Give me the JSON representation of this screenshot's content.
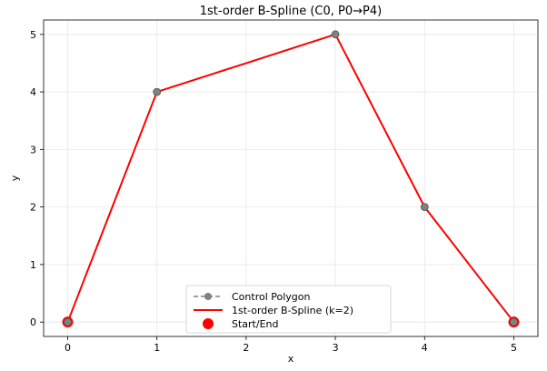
{
  "chart_data": {
    "type": "line",
    "title": "1st-order B-Spline (C0, P0→P4)",
    "xlabel": "x",
    "ylabel": "y",
    "xlim": [
      -0.27,
      5.27
    ],
    "ylim": [
      -0.25,
      5.25
    ],
    "xticks": [
      0,
      1,
      2,
      3,
      4,
      5
    ],
    "yticks": [
      0,
      1,
      2,
      3,
      4,
      5
    ],
    "grid": true,
    "legend_position": "bottom-center",
    "series": [
      {
        "name": "Control Polygon",
        "style": "dashed-with-circle-markers",
        "color": "#808080",
        "x": [
          0,
          1,
          3,
          4,
          5
        ],
        "y": [
          0,
          4,
          5,
          2,
          0
        ]
      },
      {
        "name": "1st-order B-Spline (k=2)",
        "style": "solid",
        "color": "#ff0000",
        "x": [
          0,
          1,
          3,
          4,
          5
        ],
        "y": [
          0,
          4,
          5,
          2,
          0
        ]
      },
      {
        "name": "Start/End",
        "style": "scatter",
        "color": "#ff0000",
        "x": [
          0,
          5
        ],
        "y": [
          0,
          0
        ]
      }
    ]
  }
}
